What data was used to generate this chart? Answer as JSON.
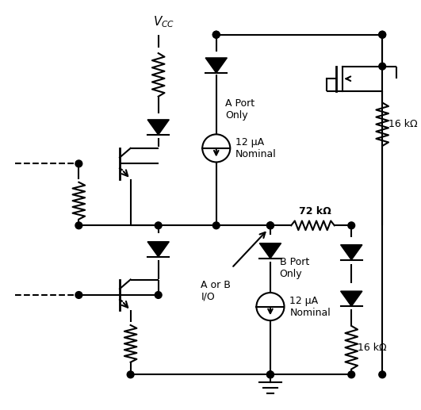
{
  "bg_color": "#ffffff",
  "line_color": "#000000",
  "lw": 1.5,
  "fig_width": 5.31,
  "fig_height": 5.17,
  "labels": {
    "vcc": "V",
    "vcc_sub": "CC",
    "a_port": "A Port\nOnly",
    "b_port": "B Port\nOnly",
    "aorb": "A or B\nI/O",
    "12ua_top": "12 μA\nNominal",
    "12ua_bot": "12 μA\nNominal",
    "72k": "72 kΩ",
    "16k_top": "16 kΩ",
    "16k_bot": "16 kΩ"
  }
}
